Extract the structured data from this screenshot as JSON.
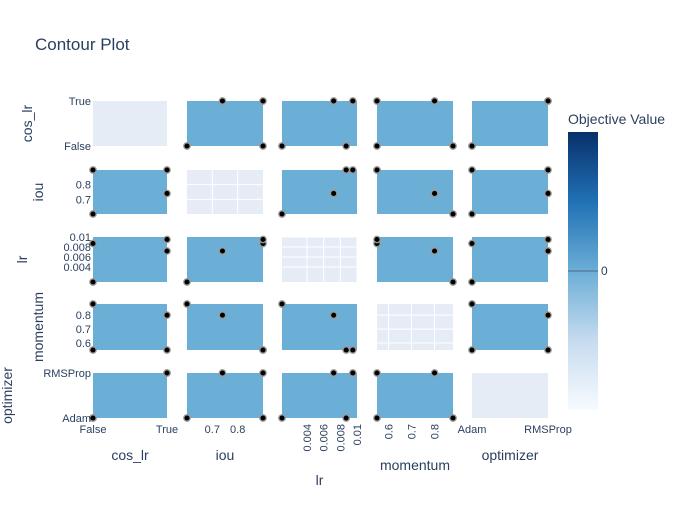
{
  "chart_data": {
    "type": "contour-matrix",
    "title": "Contour Plot",
    "params": [
      "cos_lr",
      "iou",
      "lr",
      "momentum",
      "optimizer"
    ],
    "axes": {
      "cos_lr": {
        "kind": "categorical",
        "categories": [
          "False",
          "True"
        ],
        "ticks": [
          "False",
          "True"
        ],
        "label": "cos_lr"
      },
      "iou": {
        "kind": "numeric",
        "range": [
          0.6,
          0.9
        ],
        "ticks": [
          0.7,
          0.8
        ],
        "tick_labels": [
          "0.7",
          "0.8"
        ],
        "label": "iou"
      },
      "lr": {
        "kind": "numeric",
        "range": [
          0.001,
          0.01
        ],
        "ticks": [
          0.004,
          0.006,
          0.008,
          0.01
        ],
        "tick_labels": [
          "0.004",
          "0.006",
          "0.008",
          "0.01"
        ],
        "label": "lr"
      },
      "momentum": {
        "kind": "numeric",
        "range": [
          0.55,
          0.88
        ],
        "ticks": [
          0.6,
          0.7,
          0.8
        ],
        "tick_labels": [
          "0.6",
          "0.7",
          "0.8"
        ],
        "label": "momentum"
      },
      "optimizer": {
        "kind": "categorical",
        "categories": [
          "Adam",
          "RMSProp"
        ],
        "ticks": [
          "Adam",
          "RMSProp"
        ],
        "label": "optimizer"
      }
    },
    "trials": [
      {
        "cos_lr": "False",
        "iou": 0.6,
        "lr": 0.001,
        "momentum": 0.88,
        "optimizer": "Adam"
      },
      {
        "cos_lr": "True",
        "iou": 0.74,
        "lr": 0.0072,
        "momentum": 0.8,
        "optimizer": "RMSProp"
      },
      {
        "cos_lr": "False",
        "iou": 0.9,
        "lr": 0.0087,
        "momentum": 0.55,
        "optimizer": "Adam"
      },
      {
        "cos_lr": "True",
        "iou": 0.9,
        "lr": 0.0095,
        "momentum": 0.55,
        "optimizer": "RMSProp"
      }
    ],
    "colorbar": {
      "title": "Objective Value",
      "tick": "0",
      "colorscale": [
        "#f7fbff",
        "#c6dbef",
        "#6baed6",
        "#2171b5",
        "#08306b"
      ]
    },
    "fill_color": "#6baed6",
    "empty_color": "#e5ecf6",
    "marker_color": "#000000",
    "marker_edge": "#999999"
  }
}
